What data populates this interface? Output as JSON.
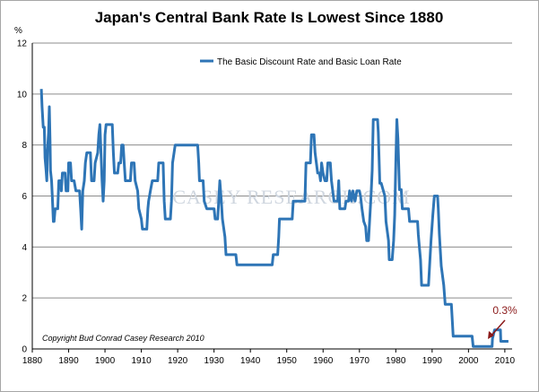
{
  "chart_data": {
    "type": "line",
    "title": "Japan's Central Bank Rate Is Lowest Since 1880",
    "ylabel": "%",
    "xlim": [
      1880,
      2012
    ],
    "ylim": [
      0,
      12
    ],
    "y_ticks": [
      0,
      2,
      4,
      6,
      8,
      10,
      12
    ],
    "x_ticks": [
      1880,
      1890,
      1900,
      1910,
      1920,
      1930,
      1940,
      1950,
      1960,
      1970,
      1980,
      1990,
      2000,
      2010
    ],
    "grid": "horizontal",
    "legend_position": "top-center",
    "series": [
      {
        "name": "The Basic Discount Rate and Basic Loan Rate",
        "color": "#2e75b6",
        "points": [
          [
            1882.5,
            10.2
          ],
          [
            1882.7,
            9.5
          ],
          [
            1883.0,
            8.7
          ],
          [
            1883.3,
            8.7
          ],
          [
            1883.5,
            7.5
          ],
          [
            1883.8,
            7.0
          ],
          [
            1884.0,
            6.6
          ],
          [
            1884.2,
            7.8
          ],
          [
            1884.5,
            8.5
          ],
          [
            1884.7,
            9.5
          ],
          [
            1884.9,
            8.0
          ],
          [
            1885.0,
            7.0
          ],
          [
            1885.3,
            6.6
          ],
          [
            1885.5,
            6.0
          ],
          [
            1885.8,
            5.0
          ],
          [
            1886.0,
            5.0
          ],
          [
            1886.3,
            5.5
          ],
          [
            1887.0,
            5.5
          ],
          [
            1887.3,
            6.6
          ],
          [
            1887.8,
            6.6
          ],
          [
            1888.0,
            6.2
          ],
          [
            1888.3,
            6.9
          ],
          [
            1889.0,
            6.9
          ],
          [
            1889.3,
            6.2
          ],
          [
            1889.8,
            6.2
          ],
          [
            1890.0,
            7.3
          ],
          [
            1890.5,
            7.3
          ],
          [
            1890.8,
            6.6
          ],
          [
            1891.5,
            6.6
          ],
          [
            1892.0,
            6.2
          ],
          [
            1893.0,
            6.2
          ],
          [
            1893.3,
            5.5
          ],
          [
            1893.6,
            4.7
          ],
          [
            1893.9,
            6.2
          ],
          [
            1894.3,
            6.6
          ],
          [
            1894.6,
            7.3
          ],
          [
            1895.0,
            7.7
          ],
          [
            1896.0,
            7.7
          ],
          [
            1896.3,
            6.6
          ],
          [
            1897.0,
            6.6
          ],
          [
            1897.3,
            7.3
          ],
          [
            1898.0,
            7.7
          ],
          [
            1898.3,
            8.4
          ],
          [
            1898.6,
            8.8
          ],
          [
            1898.9,
            7.7
          ],
          [
            1899.2,
            6.6
          ],
          [
            1899.5,
            5.8
          ],
          [
            1899.8,
            6.6
          ],
          [
            1900.0,
            8.4
          ],
          [
            1900.3,
            8.8
          ],
          [
            1902.0,
            8.8
          ],
          [
            1902.3,
            7.7
          ],
          [
            1902.6,
            6.9
          ],
          [
            1903.5,
            6.9
          ],
          [
            1903.8,
            7.3
          ],
          [
            1904.3,
            7.3
          ],
          [
            1904.6,
            8.0
          ],
          [
            1905.0,
            8.0
          ],
          [
            1905.3,
            7.3
          ],
          [
            1905.6,
            6.6
          ],
          [
            1907.0,
            6.6
          ],
          [
            1907.3,
            7.3
          ],
          [
            1908.0,
            7.3
          ],
          [
            1908.3,
            6.6
          ],
          [
            1909.0,
            6.2
          ],
          [
            1909.3,
            5.5
          ],
          [
            1910.0,
            5.1
          ],
          [
            1910.3,
            4.7
          ],
          [
            1911.5,
            4.7
          ],
          [
            1911.8,
            5.5
          ],
          [
            1912.0,
            5.8
          ],
          [
            1912.5,
            6.2
          ],
          [
            1913.0,
            6.6
          ],
          [
            1914.5,
            6.6
          ],
          [
            1914.8,
            7.3
          ],
          [
            1916.0,
            7.3
          ],
          [
            1916.3,
            5.8
          ],
          [
            1916.6,
            5.1
          ],
          [
            1918.0,
            5.1
          ],
          [
            1918.3,
            5.8
          ],
          [
            1918.6,
            7.3
          ],
          [
            1919.0,
            7.7
          ],
          [
            1919.3,
            8.0
          ],
          [
            1925.5,
            8.0
          ],
          [
            1925.8,
            7.3
          ],
          [
            1926.0,
            6.6
          ],
          [
            1927.0,
            6.6
          ],
          [
            1927.3,
            5.8
          ],
          [
            1928.0,
            5.5
          ],
          [
            1930.0,
            5.5
          ],
          [
            1930.3,
            5.1
          ],
          [
            1931.0,
            5.1
          ],
          [
            1931.3,
            5.8
          ],
          [
            1931.6,
            6.6
          ],
          [
            1932.0,
            5.8
          ],
          [
            1932.3,
            5.1
          ],
          [
            1933.0,
            4.4
          ],
          [
            1933.3,
            3.7
          ],
          [
            1936.0,
            3.7
          ],
          [
            1936.3,
            3.3
          ],
          [
            1946.0,
            3.3
          ],
          [
            1946.3,
            3.7
          ],
          [
            1947.5,
            3.7
          ],
          [
            1947.8,
            4.4
          ],
          [
            1948.0,
            5.1
          ],
          [
            1951.5,
            5.1
          ],
          [
            1951.8,
            5.8
          ],
          [
            1955.0,
            5.8
          ],
          [
            1955.3,
            7.3
          ],
          [
            1956.5,
            7.3
          ],
          [
            1956.8,
            8.4
          ],
          [
            1957.5,
            8.4
          ],
          [
            1957.8,
            7.7
          ],
          [
            1958.5,
            6.9
          ],
          [
            1959.0,
            6.9
          ],
          [
            1959.3,
            6.6
          ],
          [
            1959.6,
            7.3
          ],
          [
            1960.0,
            6.9
          ],
          [
            1960.5,
            6.6
          ],
          [
            1961.0,
            6.6
          ],
          [
            1961.3,
            7.3
          ],
          [
            1962.0,
            7.3
          ],
          [
            1962.3,
            6.6
          ],
          [
            1963.0,
            5.8
          ],
          [
            1964.0,
            5.8
          ],
          [
            1964.3,
            6.6
          ],
          [
            1964.6,
            5.5
          ],
          [
            1966.0,
            5.5
          ],
          [
            1966.3,
            5.8
          ],
          [
            1967.0,
            5.8
          ],
          [
            1967.3,
            6.2
          ],
          [
            1967.8,
            5.8
          ],
          [
            1968.2,
            6.2
          ],
          [
            1968.8,
            5.8
          ],
          [
            1969.3,
            6.2
          ],
          [
            1970.0,
            6.2
          ],
          [
            1970.3,
            6.0
          ],
          [
            1970.7,
            5.5
          ],
          [
            1971.2,
            5.0
          ],
          [
            1971.7,
            4.8
          ],
          [
            1972.0,
            4.25
          ],
          [
            1972.5,
            4.25
          ],
          [
            1972.8,
            5.0
          ],
          [
            1973.2,
            6.0
          ],
          [
            1973.5,
            7.0
          ],
          [
            1973.8,
            9.0
          ],
          [
            1975.0,
            9.0
          ],
          [
            1975.2,
            8.5
          ],
          [
            1975.6,
            6.5
          ],
          [
            1976.0,
            6.5
          ],
          [
            1977.0,
            6.0
          ],
          [
            1977.3,
            5.0
          ],
          [
            1978.0,
            4.25
          ],
          [
            1978.2,
            3.5
          ],
          [
            1979.0,
            3.5
          ],
          [
            1979.4,
            4.25
          ],
          [
            1979.7,
            5.25
          ],
          [
            1980.0,
            7.25
          ],
          [
            1980.3,
            9.0
          ],
          [
            1980.6,
            8.25
          ],
          [
            1981.0,
            6.25
          ],
          [
            1981.5,
            6.25
          ],
          [
            1981.8,
            5.5
          ],
          [
            1983.5,
            5.5
          ],
          [
            1983.8,
            5.0
          ],
          [
            1986.0,
            5.0
          ],
          [
            1986.2,
            4.5
          ],
          [
            1986.5,
            4.0
          ],
          [
            1986.8,
            3.5
          ],
          [
            1987.1,
            2.5
          ],
          [
            1989.0,
            2.5
          ],
          [
            1989.3,
            3.25
          ],
          [
            1989.7,
            4.25
          ],
          [
            1990.2,
            5.25
          ],
          [
            1990.6,
            6.0
          ],
          [
            1991.5,
            6.0
          ],
          [
            1991.7,
            5.5
          ],
          [
            1992.0,
            4.5
          ],
          [
            1992.5,
            3.25
          ],
          [
            1993.2,
            2.5
          ],
          [
            1993.6,
            1.75
          ],
          [
            1995.3,
            1.75
          ],
          [
            1995.6,
            1.0
          ],
          [
            1995.8,
            0.5
          ],
          [
            2001.0,
            0.5
          ],
          [
            2001.3,
            0.1
          ],
          [
            2006.5,
            0.1
          ],
          [
            2006.6,
            0.4
          ],
          [
            2007.2,
            0.75
          ],
          [
            2008.8,
            0.75
          ],
          [
            2008.9,
            0.3
          ],
          [
            2011.0,
            0.3
          ]
        ]
      }
    ],
    "annotations": [
      {
        "text": "0.3%",
        "x": 2011.0,
        "y": 0.3
      }
    ],
    "credit": "Copyright Bud Conrad Casey Research 2010",
    "watermark": "CASEY RESEARCH.COM"
  }
}
